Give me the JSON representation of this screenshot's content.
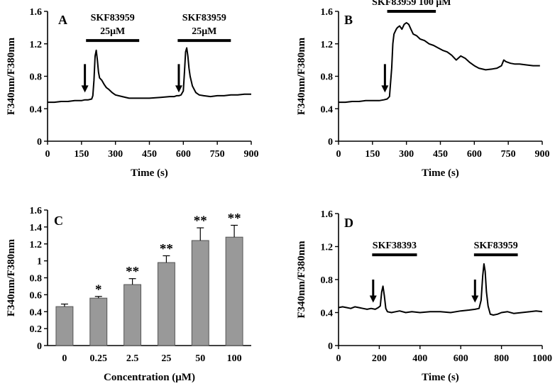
{
  "chart_data": [
    {
      "panel": "A",
      "type": "line",
      "xlabel": "Time (s)",
      "ylabel": "F340nm/F380nm",
      "xlim": [
        0,
        900
      ],
      "ylim": [
        0,
        1.6
      ],
      "xticks": [
        0,
        150,
        300,
        450,
        600,
        750,
        900
      ],
      "yticks": [
        0,
        0.4,
        0.8,
        1.2,
        1.6
      ],
      "ytick_labels": [
        "0",
        "0.4",
        "0.8",
        "1.2",
        "1.6"
      ],
      "series": [
        {
          "name": "trace",
          "x": [
            0,
            30,
            60,
            90,
            120,
            150,
            165,
            180,
            195,
            200,
            205,
            210,
            215,
            220,
            225,
            230,
            240,
            250,
            260,
            270,
            285,
            300,
            330,
            360,
            400,
            450,
            500,
            540,
            560,
            570,
            580,
            590,
            600,
            605,
            610,
            615,
            620,
            625,
            630,
            640,
            655,
            670,
            690,
            720,
            750,
            780,
            810,
            840,
            870,
            900
          ],
          "y": [
            0.48,
            0.48,
            0.49,
            0.49,
            0.5,
            0.5,
            0.51,
            0.51,
            0.52,
            0.56,
            0.75,
            1.05,
            1.12,
            1.0,
            0.85,
            0.78,
            0.75,
            0.7,
            0.66,
            0.64,
            0.6,
            0.57,
            0.55,
            0.53,
            0.53,
            0.53,
            0.54,
            0.55,
            0.55,
            0.56,
            0.56,
            0.57,
            0.62,
            0.85,
            1.1,
            1.15,
            1.05,
            0.9,
            0.8,
            0.68,
            0.6,
            0.57,
            0.56,
            0.55,
            0.56,
            0.56,
            0.57,
            0.57,
            0.58,
            0.58
          ]
        }
      ],
      "annotations": [
        {
          "label_line1": "SKF83959",
          "label_line2": "25μM",
          "bar_start": 170,
          "bar_end": 405,
          "bar_y": 1.24
        },
        {
          "label_line1": "SKF83959",
          "label_line2": "25μM",
          "bar_start": 575,
          "bar_end": 810,
          "bar_y": 1.24
        }
      ],
      "arrows_x": [
        165,
        580
      ],
      "arrow_top_y": 0.95,
      "arrow_tip_y": 0.6
    },
    {
      "panel": "B",
      "type": "line",
      "xlabel": "Time (s)",
      "ylabel": "F340nm/F380nm",
      "xlim": [
        0,
        900
      ],
      "ylim": [
        0,
        1.6
      ],
      "xticks": [
        0,
        150,
        300,
        450,
        600,
        750,
        900
      ],
      "yticks": [
        0,
        0.4,
        0.8,
        1.2,
        1.6
      ],
      "ytick_labels": [
        "0",
        "0.4",
        "0.8",
        "1.2",
        "1.6"
      ],
      "series": [
        {
          "name": "trace",
          "x": [
            0,
            30,
            60,
            90,
            120,
            150,
            180,
            200,
            215,
            225,
            235,
            240,
            245,
            250,
            255,
            260,
            270,
            280,
            290,
            300,
            310,
            320,
            330,
            345,
            360,
            380,
            400,
            420,
            440,
            460,
            480,
            500,
            520,
            540,
            560,
            580,
            600,
            620,
            650,
            680,
            700,
            720,
            730,
            740,
            760,
            780,
            800,
            830,
            860,
            890
          ],
          "y": [
            0.48,
            0.48,
            0.49,
            0.49,
            0.5,
            0.5,
            0.5,
            0.51,
            0.52,
            0.55,
            0.9,
            1.2,
            1.32,
            1.35,
            1.38,
            1.4,
            1.42,
            1.38,
            1.44,
            1.46,
            1.44,
            1.38,
            1.32,
            1.3,
            1.26,
            1.24,
            1.2,
            1.18,
            1.15,
            1.12,
            1.1,
            1.06,
            1.0,
            1.05,
            1.02,
            0.97,
            0.93,
            0.9,
            0.88,
            0.89,
            0.9,
            0.93,
            1.0,
            0.98,
            0.96,
            0.95,
            0.95,
            0.94,
            0.93,
            0.93
          ]
        }
      ],
      "annotations": [
        {
          "label_line1": "SKF83959 100 μM",
          "bar_start": 215,
          "bar_end": 430,
          "bar_y": 1.6
        }
      ],
      "arrows_x": [
        205
      ],
      "arrow_top_y": 0.95,
      "arrow_tip_y": 0.6
    },
    {
      "panel": "C",
      "type": "bar",
      "xlabel": "Concentration (μM)",
      "ylabel": "F340nm/F380nm",
      "categories": [
        "0",
        "0.25",
        "2.5",
        "25",
        "50",
        "100"
      ],
      "values": [
        0.46,
        0.56,
        0.72,
        0.98,
        1.24,
        1.28
      ],
      "errors": [
        0.03,
        0.02,
        0.07,
        0.08,
        0.15,
        0.14
      ],
      "significance": [
        "",
        "*",
        "**",
        "**",
        "**",
        "**"
      ],
      "ylim": [
        0,
        1.6
      ],
      "yticks": [
        0,
        0.2,
        0.4,
        0.6,
        0.8,
        1.0,
        1.2,
        1.4,
        1.6
      ],
      "ytick_labels": [
        "0",
        "0.2",
        "0.4",
        "0.6",
        "0.8",
        "1",
        "1.2",
        "1.4",
        "1.6"
      ],
      "bar_color": "#999999"
    },
    {
      "panel": "D",
      "type": "line",
      "xlabel": "Time (s)",
      "ylabel": "F340nm/F380nm",
      "xlim": [
        0,
        1000
      ],
      "ylim": [
        0,
        1.6
      ],
      "xticks": [
        0,
        200,
        400,
        600,
        800,
        1000
      ],
      "yticks": [
        0,
        0.4,
        0.8,
        1.2,
        1.6
      ],
      "ytick_labels": [
        "0",
        "0.4",
        "0.8",
        "1.2",
        "1.6"
      ],
      "series": [
        {
          "name": "trace",
          "x": [
            0,
            20,
            40,
            60,
            80,
            100,
            120,
            140,
            160,
            180,
            195,
            205,
            212,
            218,
            225,
            232,
            240,
            260,
            280,
            300,
            330,
            360,
            400,
            450,
            500,
            550,
            600,
            640,
            670,
            690,
            700,
            708,
            714,
            720,
            726,
            734,
            745,
            760,
            780,
            800,
            830,
            860,
            900,
            940,
            970,
            1000
          ],
          "y": [
            0.46,
            0.47,
            0.46,
            0.45,
            0.47,
            0.46,
            0.45,
            0.44,
            0.45,
            0.44,
            0.46,
            0.48,
            0.65,
            0.72,
            0.6,
            0.45,
            0.41,
            0.4,
            0.41,
            0.42,
            0.4,
            0.41,
            0.4,
            0.41,
            0.41,
            0.4,
            0.42,
            0.43,
            0.44,
            0.45,
            0.55,
            0.85,
            0.99,
            0.9,
            0.65,
            0.48,
            0.38,
            0.37,
            0.38,
            0.4,
            0.41,
            0.39,
            0.4,
            0.41,
            0.42,
            0.41
          ]
        }
      ],
      "annotations": [
        {
          "label_line1": "SKF38393",
          "bar_start": 165,
          "bar_end": 385,
          "bar_y": 1.1
        },
        {
          "label_line1": "SKF83959",
          "bar_start": 665,
          "bar_end": 880,
          "bar_y": 1.1
        }
      ],
      "arrows_x": [
        170,
        670
      ],
      "arrow_top_y": 0.8,
      "arrow_tip_y": 0.52
    }
  ]
}
